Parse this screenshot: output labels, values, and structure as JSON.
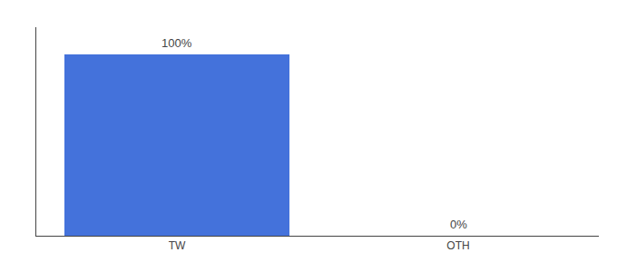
{
  "chart_data": {
    "type": "bar",
    "categories": [
      "TW",
      "OTH"
    ],
    "values": [
      100,
      0
    ],
    "value_labels": [
      "100%",
      "0%"
    ],
    "color": "#4472db",
    "ylim": [
      0,
      115
    ],
    "data_labels": true,
    "tick_labels": "x",
    "grid": false
  }
}
